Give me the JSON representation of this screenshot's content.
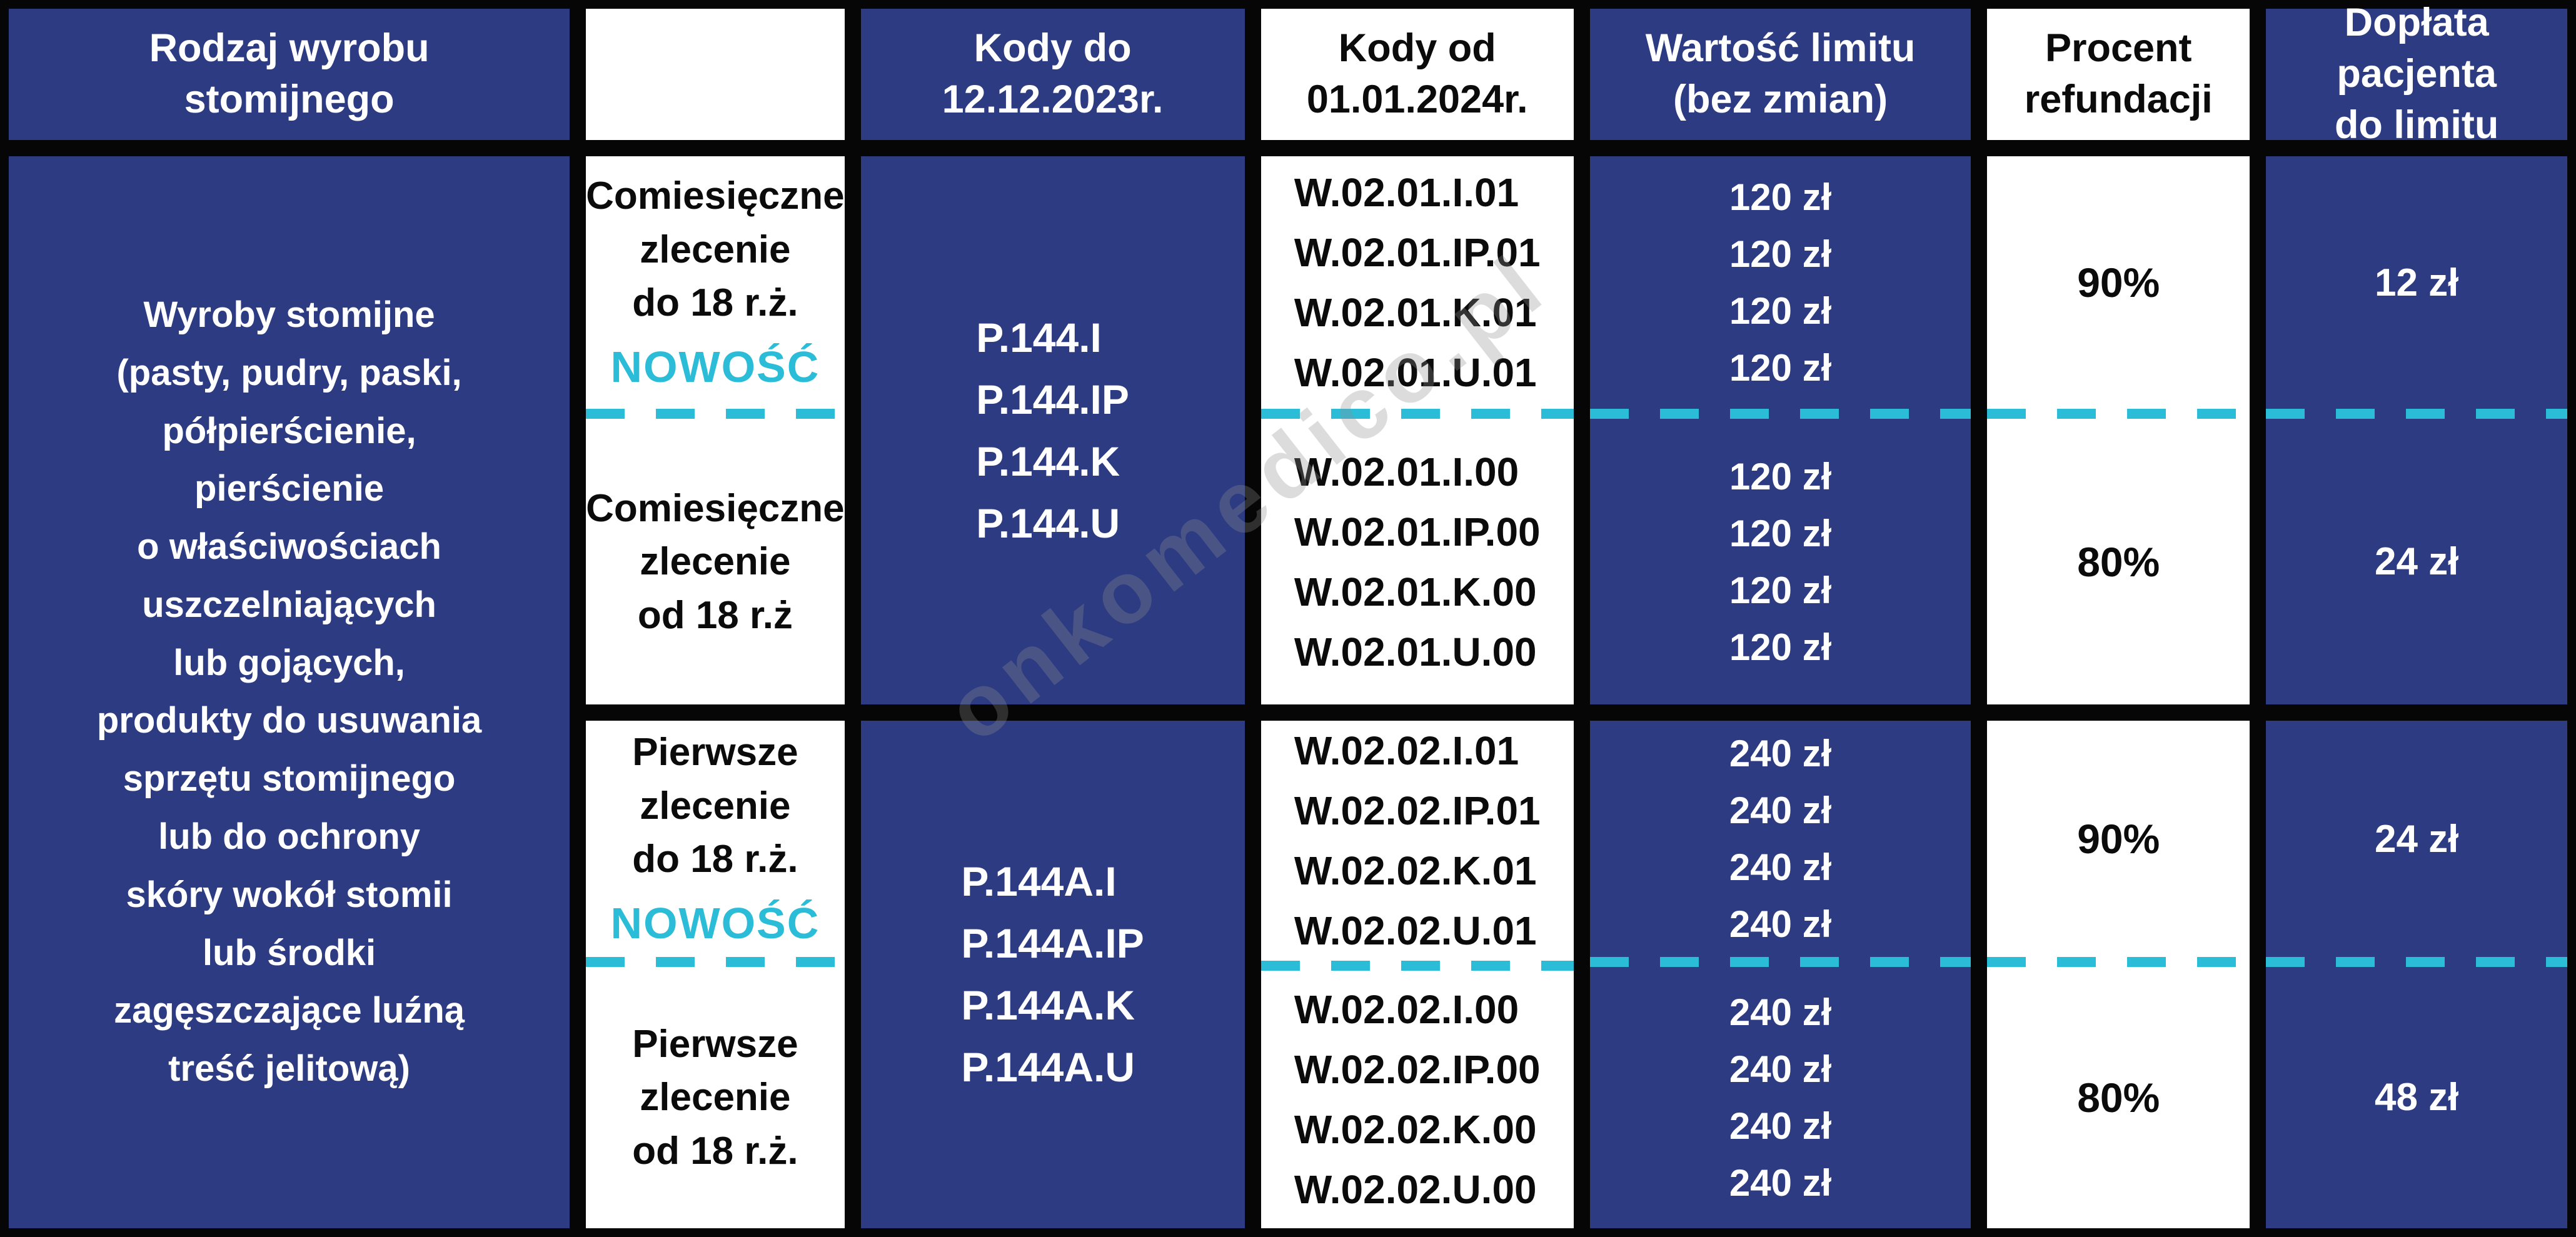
{
  "colors": {
    "navy": "#2d3b82",
    "cyan": "#2bbdd8",
    "line": "#060606",
    "paper": "#ffffff",
    "ink": "#0b0b0b"
  },
  "watermark": {
    "text": "onkomedico.pl"
  },
  "header": {
    "product_type": "Rodzaj wyrobu\nstomijnego",
    "order_type": "",
    "codes_until": "Kody do\n12.12.2023r.",
    "codes_from": "Kody od\n01.01.2024r.",
    "limit_value": "Wartość limitu\n(bez zmian)",
    "refund_percent": "Procent\nrefundacji",
    "patient_copay": "Dopłata pacjenta\ndo limitu"
  },
  "product": {
    "name": "Wyroby stomijne\n(pasty, pudry, paski,\npółpierścienie,\npierścienie\no właściwościach\nuszczelniających\nlub gojących,\nprodukty do usuwania\nsprzętu stomijnego\nlub do ochrony\nskóry wokół stomii\nlub środki\nzagęszczające luźną\ntreść jelitową)"
  },
  "groups": [
    {
      "old_codes": "P.144.I\nP.144.IP\nP.144.K\nP.144.U",
      "rows": [
        {
          "order_type": "Comiesięczne\nzlecenie\ndo 18 r.ż.",
          "badge": "NOWOŚĆ",
          "new_codes": "W.02.01.I.01\nW.02.01.IP.01\nW.02.01.K.01\nW.02.01.U.01",
          "limit": "120 zł\n120 zł\n120 zł\n120 zł",
          "refund_percent": "90%",
          "copay": "12 zł"
        },
        {
          "order_type": "Comiesięczne\nzlecenie\nod 18 r.ż",
          "badge": "",
          "new_codes": "W.02.01.I.00\nW.02.01.IP.00\nW.02.01.K.00\nW.02.01.U.00",
          "limit": "120 zł\n120 zł\n120 zł\n120 zł",
          "refund_percent": "80%",
          "copay": "24 zł"
        }
      ]
    },
    {
      "old_codes": "P.144A.I\nP.144A.IP\nP.144A.K\nP.144A.U",
      "rows": [
        {
          "order_type": "Pierwsze\nzlecenie\ndo 18 r.ż.",
          "badge": "NOWOŚĆ",
          "new_codes": "W.02.02.I.01\nW.02.02.IP.01\nW.02.02.K.01\nW.02.02.U.01",
          "limit": "240 zł\n240 zł\n240 zł\n240 zł",
          "refund_percent": "90%",
          "copay": "24 zł"
        },
        {
          "order_type": "Pierwsze\nzlecenie\nod 18 r.ż.",
          "badge": "",
          "new_codes": "W.02.02.I.00\nW.02.02.IP.00\nW.02.02.K.00\nW.02.02.U.00",
          "limit": "240 zł\n240 zł\n240 zł\n240 zł",
          "refund_percent": "80%",
          "copay": "48 zł"
        }
      ]
    }
  ]
}
